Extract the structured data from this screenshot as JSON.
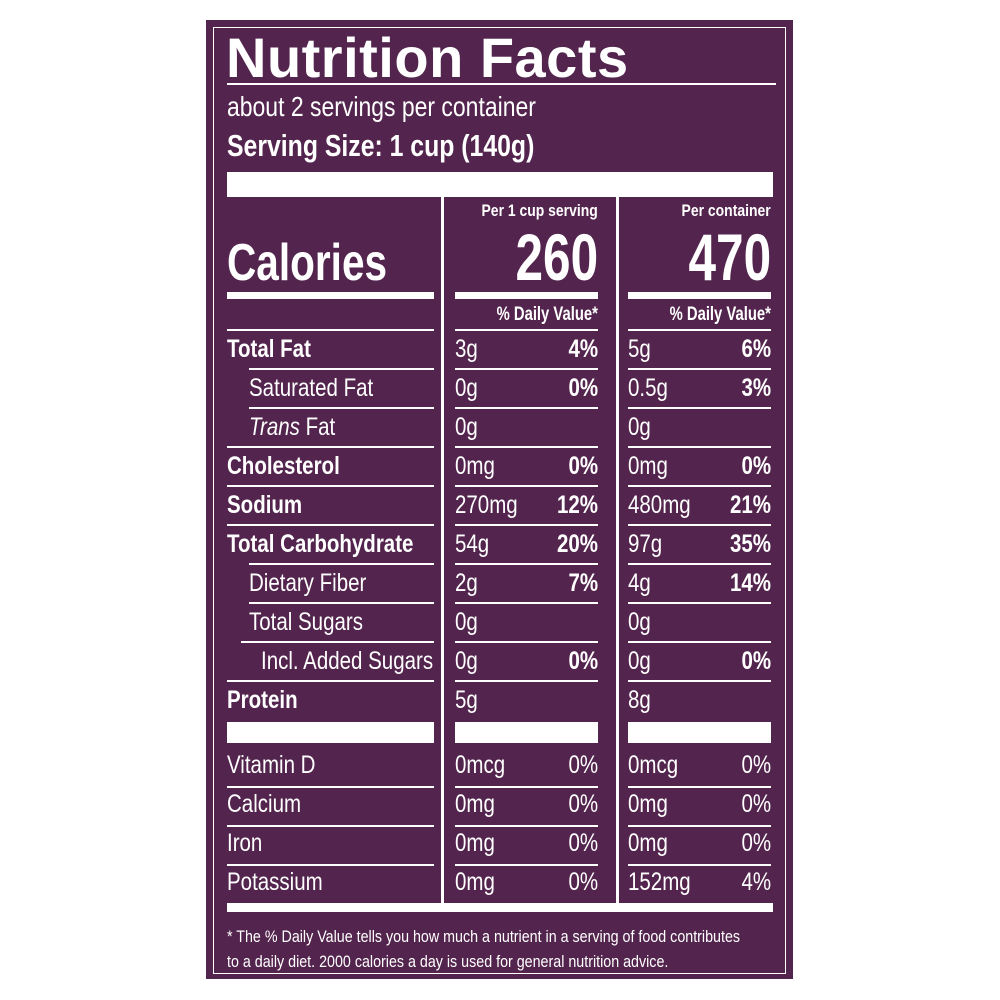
{
  "label": {
    "title": "Nutrition Facts",
    "servings_per_container": "about 2 servings per container",
    "serving_size": "Serving Size: 1 cup (140g)",
    "background_color": "#53244d",
    "foreground_color": "#ffffff"
  },
  "columns": [
    {
      "header": "Per 1 cup serving",
      "calories": "260",
      "dv_header": "% Daily Value*"
    },
    {
      "header": "Per container",
      "calories": "470",
      "dv_header": "% Daily Value*"
    }
  ],
  "calories_label": "Calories",
  "nutrients": [
    {
      "name": "Total Fat",
      "bold": true,
      "indent": 0,
      "serving": {
        "amount": "3g",
        "dv": "4%"
      },
      "container": {
        "amount": "5g",
        "dv": "6%"
      }
    },
    {
      "name": "Saturated Fat",
      "bold": false,
      "indent": 1,
      "serving": {
        "amount": "0g",
        "dv": "0%"
      },
      "container": {
        "amount": "0.5g",
        "dv": "3%"
      }
    },
    {
      "name_italic": "Trans",
      "name": " Fat",
      "bold": false,
      "indent": 1,
      "serving": {
        "amount": "0g",
        "dv": ""
      },
      "container": {
        "amount": "0g",
        "dv": ""
      }
    },
    {
      "name": "Cholesterol",
      "bold": true,
      "indent": 0,
      "serving": {
        "amount": "0mg",
        "dv": "0%"
      },
      "container": {
        "amount": "0mg",
        "dv": "0%"
      }
    },
    {
      "name": "Sodium",
      "bold": true,
      "indent": 0,
      "serving": {
        "amount": "270mg",
        "dv": "12%"
      },
      "container": {
        "amount": "480mg",
        "dv": "21%"
      }
    },
    {
      "name": "Total Carbohydrate",
      "bold": true,
      "indent": 0,
      "serving": {
        "amount": "54g",
        "dv": "20%"
      },
      "container": {
        "amount": "97g",
        "dv": "35%"
      }
    },
    {
      "name": "Dietary Fiber",
      "bold": false,
      "indent": 1,
      "serving": {
        "amount": "2g",
        "dv": "7%"
      },
      "container": {
        "amount": "4g",
        "dv": "14%"
      }
    },
    {
      "name": "Total Sugars",
      "bold": false,
      "indent": 1,
      "serving": {
        "amount": "0g",
        "dv": ""
      },
      "container": {
        "amount": "0g",
        "dv": ""
      }
    },
    {
      "name": "Incl. Added Sugars",
      "bold": false,
      "indent": 2,
      "serving": {
        "amount": "0g",
        "dv": "0%"
      },
      "container": {
        "amount": "0g",
        "dv": "0%"
      }
    },
    {
      "name": "Protein",
      "bold": true,
      "indent": 0,
      "serving": {
        "amount": "5g",
        "dv": ""
      },
      "container": {
        "amount": "8g",
        "dv": ""
      }
    }
  ],
  "vitamins": [
    {
      "name": "Vitamin D",
      "serving": {
        "amount": "0mcg",
        "dv": "0%"
      },
      "container": {
        "amount": "0mcg",
        "dv": "0%"
      }
    },
    {
      "name": "Calcium",
      "serving": {
        "amount": "0mg",
        "dv": "0%"
      },
      "container": {
        "amount": "0mg",
        "dv": "0%"
      }
    },
    {
      "name": "Iron",
      "serving": {
        "amount": "0mg",
        "dv": "0%"
      },
      "container": {
        "amount": "0mg",
        "dv": "0%"
      }
    },
    {
      "name": "Potassium",
      "serving": {
        "amount": "0mg",
        "dv": "0%"
      },
      "container": {
        "amount": "152mg",
        "dv": "4%"
      }
    }
  ],
  "footnote": {
    "line1": "* The % Daily Value tells you how much a nutrient in a serving of food contributes",
    "line2": "to a daily diet. 2000 calories a day is used for general nutrition advice."
  }
}
